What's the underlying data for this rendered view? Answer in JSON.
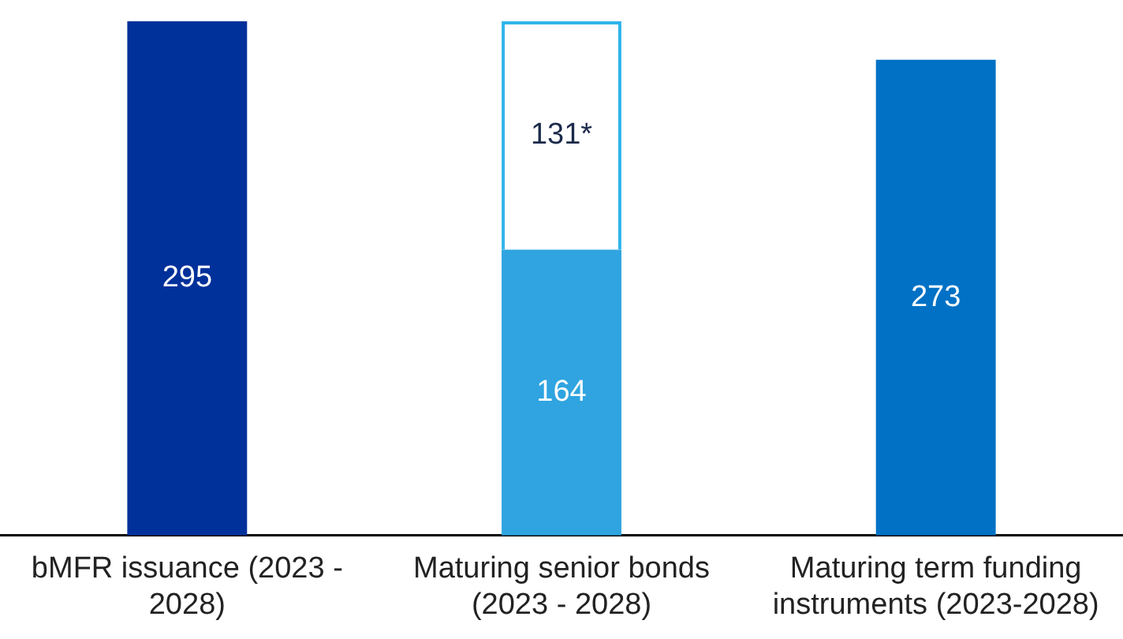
{
  "chart_data": {
    "type": "bar",
    "stacked": true,
    "categories": [
      "bMFR issuance (2023 - 2028)",
      "Maturing senior bonds (2023 - 2028)",
      "Maturing term funding instruments (2023-2028)"
    ],
    "series": [
      {
        "colors": [
          "#00309a",
          "#2fa4e0",
          "#0071c5"
        ],
        "values": [
          295,
          164,
          273
        ],
        "value_labels": [
          "295",
          "164",
          "273"
        ]
      },
      {
        "color": "#2fb4ea",
        "line_style": "dashed",
        "values": [
          null,
          131,
          null
        ],
        "value_labels": [
          null,
          "131*",
          null
        ]
      }
    ],
    "grid": false,
    "legend": false,
    "tick_labels": "x"
  }
}
